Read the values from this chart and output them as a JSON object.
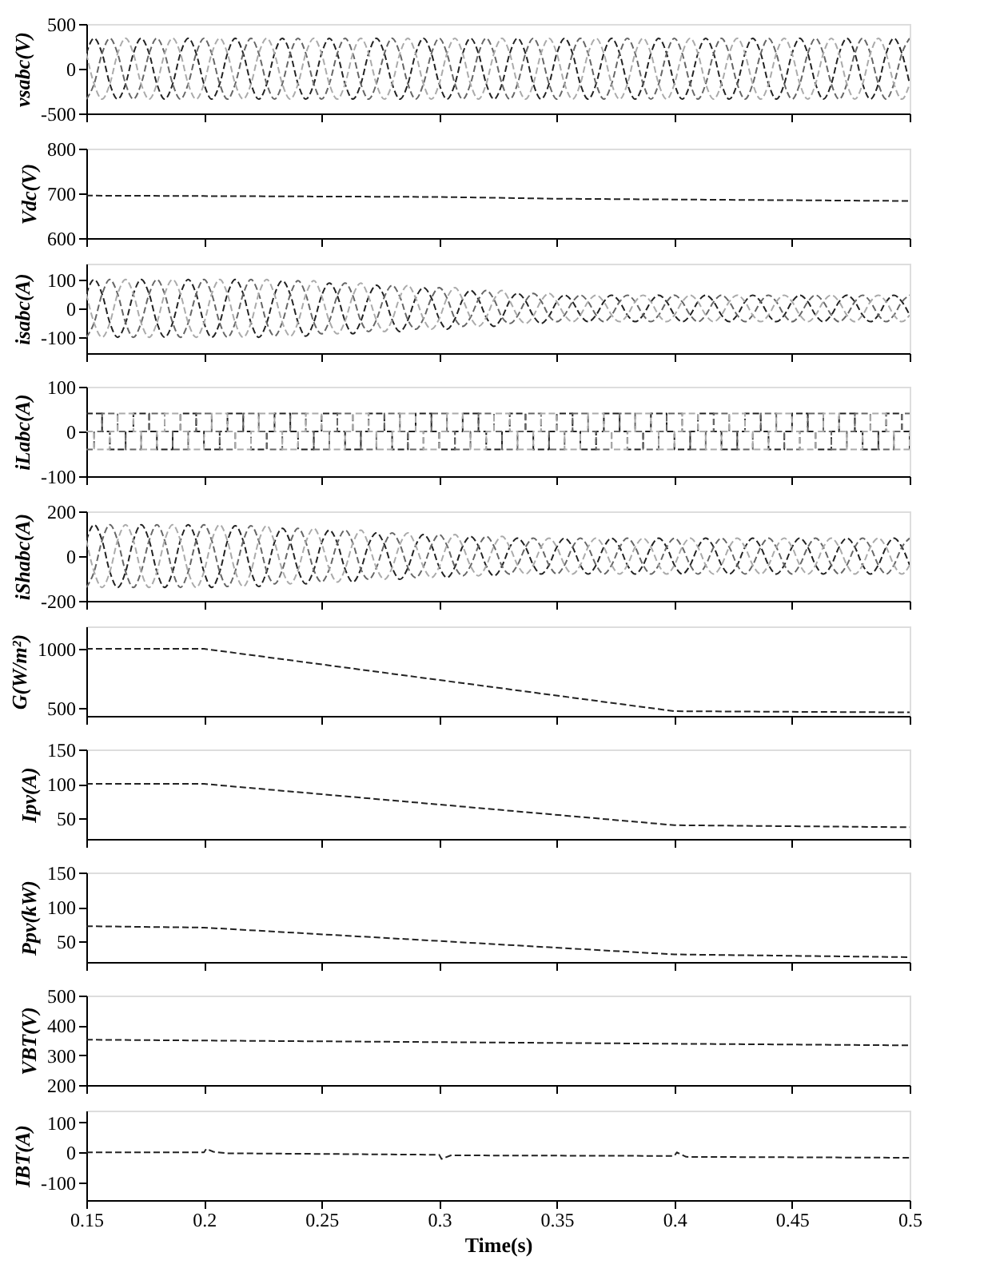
{
  "chart_data": [
    {
      "type": "line",
      "line_style": "dashed",
      "ylabel": "vsabc(V)",
      "xlim": [
        0.15,
        0.5
      ],
      "xticks": [
        0.15,
        0.2,
        0.25,
        0.3,
        0.35,
        0.4,
        0.45,
        0.5
      ],
      "ylim": [
        -500,
        500
      ],
      "yticks": [
        -500,
        0,
        500
      ],
      "tick_labels": "y",
      "x": [
        0.15,
        0.1533,
        0.1567,
        0.16,
        0.1633,
        0.1667,
        0.17,
        0.1733,
        0.1767,
        0.18,
        0.1833,
        0.1867,
        0.19,
        0.1933,
        0.1967,
        0.2,
        0.2033,
        0.2067,
        0.21,
        0.2133,
        0.2167,
        0.22,
        0.2233,
        0.2267,
        0.23,
        0.2333,
        0.2367,
        0.24,
        0.2433,
        0.2467,
        0.25,
        0.2533,
        0.2567,
        0.26,
        0.2633,
        0.2667,
        0.27,
        0.2733,
        0.2767,
        0.28,
        0.2833,
        0.2867,
        0.29,
        0.2933,
        0.2967,
        0.3,
        0.3033,
        0.3067,
        0.31,
        0.3133,
        0.3167,
        0.32,
        0.3233,
        0.3267,
        0.33,
        0.3333,
        0.3367,
        0.34,
        0.3433,
        0.3467,
        0.35,
        0.3533,
        0.3567,
        0.36,
        0.3633,
        0.3667,
        0.37,
        0.3733,
        0.3767,
        0.38,
        0.3833,
        0.3867,
        0.39,
        0.3933,
        0.3967,
        0.4,
        0.4033,
        0.4067,
        0.41,
        0.4133,
        0.4167,
        0.42,
        0.4233,
        0.4267,
        0.43,
        0.4333,
        0.4367,
        0.44,
        0.4433,
        0.4467,
        0.45,
        0.4533,
        0.4567,
        0.46,
        0.4633,
        0.4667,
        0.47,
        0.4733,
        0.4767,
        0.48,
        0.4833,
        0.4867,
        0.49,
        0.4933,
        0.4967,
        0.5
      ],
      "series": [
        {
          "color": "#222222",
          "values": [
            170,
            340,
            170,
            -170,
            -340,
            -170,
            170,
            340,
            170,
            -170,
            -340,
            -170,
            170,
            340,
            170,
            -170,
            -340,
            -170,
            170,
            340,
            170,
            -170,
            -340,
            -170,
            170,
            340,
            170,
            -170,
            -340,
            -170,
            170,
            340,
            170,
            -170,
            -340,
            -170,
            170,
            340,
            170,
            -170,
            -340,
            -170,
            170,
            340,
            170,
            -170,
            -340,
            -170,
            170,
            340,
            170,
            -170,
            -340,
            -170,
            170,
            340,
            170,
            -170,
            -340,
            -170,
            170,
            340,
            170,
            -170,
            -340,
            -170,
            170,
            340,
            170,
            -170,
            -340,
            -170,
            170,
            340,
            170,
            -170,
            -340,
            -170,
            170,
            340,
            170,
            -170,
            -340,
            -170,
            170,
            340,
            170,
            -170,
            -340,
            -170,
            170,
            340,
            170,
            -170,
            -340,
            -170,
            170,
            340,
            170,
            -170,
            -340,
            -170,
            170,
            340,
            170,
            -170
          ]
        },
        {
          "color": "#666666",
          "values": [
            -340,
            -170,
            170,
            340,
            170,
            -170,
            -340,
            -170,
            170,
            340,
            170,
            -170,
            -340,
            -170,
            170,
            340,
            170,
            -170,
            -340,
            -170,
            170,
            340,
            170,
            -170,
            -340,
            -170,
            170,
            340,
            170,
            -170,
            -340,
            -170,
            170,
            340,
            170,
            -170,
            -340,
            -170,
            170,
            340,
            170,
            -170,
            -340,
            -170,
            170,
            340,
            170,
            -170,
            -340,
            -170,
            170,
            340,
            170,
            -170,
            -340,
            -170,
            170,
            340,
            170,
            -170,
            -340,
            -170,
            170,
            340,
            170,
            -170,
            -340,
            -170,
            170,
            340,
            170,
            -170,
            -340,
            -170,
            170,
            340,
            170,
            -170,
            -340,
            -170,
            170,
            340,
            170,
            -170,
            -340,
            -170,
            170,
            340,
            170,
            -170,
            -340,
            -170,
            170,
            340,
            170,
            -170,
            -340,
            -170,
            170,
            340,
            170,
            -170,
            -340,
            -170,
            170,
            340
          ]
        },
        {
          "color": "#aaaaaa",
          "values": [
            170,
            -170,
            -340,
            -170,
            170,
            340,
            170,
            -170,
            -340,
            -170,
            170,
            340,
            170,
            -170,
            -340,
            -170,
            170,
            340,
            170,
            -170,
            -340,
            -170,
            170,
            340,
            170,
            -170,
            -340,
            -170,
            170,
            340,
            170,
            -170,
            -340,
            -170,
            170,
            340,
            170,
            -170,
            -340,
            -170,
            170,
            340,
            170,
            -170,
            -340,
            -170,
            170,
            340,
            170,
            -170,
            -340,
            -170,
            170,
            340,
            170,
            -170,
            -340,
            -170,
            170,
            340,
            170,
            -170,
            -340,
            -170,
            170,
            340,
            170,
            -170,
            -340,
            -170,
            170,
            340,
            170,
            -170,
            -340,
            -170,
            170,
            340,
            170,
            -170,
            -340,
            -170,
            170,
            340,
            170,
            -170,
            -340,
            -170,
            170,
            340,
            170,
            -170,
            -340,
            -170,
            170,
            340,
            170,
            -170,
            -340,
            -170,
            170,
            340,
            170,
            -170,
            -340,
            -170
          ]
        }
      ]
    },
    {
      "type": "line",
      "line_style": "dashed",
      "ylabel": "Vdc(V)",
      "xlim": [
        0.15,
        0.5
      ],
      "xticks": [
        0.15,
        0.2,
        0.25,
        0.3,
        0.35,
        0.4,
        0.45,
        0.5
      ],
      "ylim": [
        600,
        800
      ],
      "yticks": [
        600,
        700,
        800
      ],
      "tick_labels": "y",
      "series": [
        {
          "color": "#222222",
          "x": [
            0.15,
            0.3,
            0.35,
            0.5
          ],
          "values": [
            695,
            692,
            688,
            683
          ]
        }
      ]
    },
    {
      "type": "line",
      "line_style": "dashed",
      "ylabel": "isabc(A)",
      "xlim": [
        0.15,
        0.5
      ],
      "xticks": [
        0.15,
        0.2,
        0.25,
        0.3,
        0.35,
        0.4,
        0.45,
        0.5
      ],
      "ylim": [
        -155,
        155
      ],
      "yticks": [
        -100,
        0,
        100
      ],
      "tick_labels": "y",
      "x": [
        0.15,
        0.1533,
        0.1567,
        0.16,
        0.1633,
        0.1667,
        0.17,
        0.1733,
        0.1767,
        0.18,
        0.1833,
        0.1867,
        0.19,
        0.1933,
        0.1967,
        0.2,
        0.2033,
        0.2067,
        0.21,
        0.2133,
        0.2167,
        0.22,
        0.2233,
        0.2267,
        0.23,
        0.2333,
        0.2367,
        0.24,
        0.2433,
        0.2467,
        0.25,
        0.2533,
        0.2567,
        0.26,
        0.2633,
        0.2667,
        0.27,
        0.2733,
        0.2767,
        0.28,
        0.2833,
        0.2867,
        0.29,
        0.2933,
        0.2967,
        0.3,
        0.3033,
        0.3067,
        0.31,
        0.3133,
        0.3167,
        0.32,
        0.3233,
        0.3267,
        0.33,
        0.3333,
        0.3367,
        0.34,
        0.3433,
        0.3467,
        0.35,
        0.3533,
        0.3567,
        0.36,
        0.3633,
        0.3667,
        0.37,
        0.3733,
        0.3767,
        0.38,
        0.3833,
        0.3867,
        0.39,
        0.3933,
        0.3967,
        0.4,
        0.4033,
        0.4067,
        0.41,
        0.4133,
        0.4167,
        0.42,
        0.4233,
        0.4267,
        0.43,
        0.4333,
        0.4367,
        0.44,
        0.4433,
        0.4467,
        0.45,
        0.4533,
        0.4567,
        0.46,
        0.4633,
        0.4667,
        0.47,
        0.4733,
        0.4767,
        0.48,
        0.4833,
        0.4867,
        0.49,
        0.4933,
        0.4967,
        0.5
      ],
      "series": [
        {
          "color": "#222222",
          "values": [
            50,
            100,
            50,
            -50,
            -100,
            -50,
            50,
            100,
            50,
            -50,
            -100,
            -50,
            50,
            100,
            50,
            -50,
            -100,
            -50,
            50,
            100,
            50,
            -50,
            -100,
            -50,
            48,
            96,
            48,
            -48,
            -96,
            -48,
            44,
            88,
            44,
            -44,
            -88,
            -44,
            40,
            80,
            40,
            -40,
            -80,
            -40,
            36,
            72,
            36,
            -36,
            -72,
            -36,
            31,
            62,
            31,
            -31,
            -62,
            -31,
            26,
            52,
            26,
            -26,
            -52,
            -26,
            23,
            46,
            23,
            -23,
            -46,
            -23,
            23,
            46,
            23,
            -23,
            -46,
            -23,
            23,
            46,
            23,
            -23,
            -46,
            -23,
            23,
            46,
            23,
            -23,
            -46,
            -23,
            23,
            46,
            23,
            -23,
            -46,
            -23,
            23,
            46,
            23,
            -23,
            -46,
            -23,
            23,
            46,
            23,
            -23,
            -46,
            -23,
            23,
            46,
            23,
            -23
          ]
        },
        {
          "color": "#666666",
          "values": [
            -100,
            -50,
            50,
            100,
            50,
            -50,
            -100,
            -50,
            50,
            100,
            50,
            -50,
            -100,
            -50,
            50,
            100,
            50,
            -50,
            -100,
            -50,
            50,
            100,
            50,
            -50,
            -96,
            -48,
            48,
            96,
            48,
            -48,
            -88,
            -44,
            44,
            88,
            44,
            -44,
            -80,
            -40,
            40,
            80,
            40,
            -40,
            -72,
            -36,
            36,
            72,
            36,
            -36,
            -62,
            -31,
            31,
            62,
            31,
            -31,
            -52,
            -26,
            26,
            52,
            26,
            -26,
            -46,
            -23,
            23,
            46,
            23,
            -23,
            -46,
            -23,
            23,
            46,
            23,
            -23,
            -46,
            -23,
            23,
            46,
            23,
            -23,
            -46,
            -23,
            23,
            46,
            23,
            -23,
            -46,
            -23,
            23,
            46,
            23,
            -23,
            -46,
            -23,
            23,
            46,
            23,
            -23,
            -46,
            -23,
            23,
            46,
            23,
            -23,
            -46,
            -23,
            23,
            46
          ]
        },
        {
          "color": "#aaaaaa",
          "values": [
            50,
            -50,
            -100,
            -50,
            50,
            100,
            50,
            -50,
            -100,
            -50,
            50,
            100,
            50,
            -50,
            -100,
            -50,
            50,
            100,
            50,
            -50,
            -100,
            -50,
            50,
            100,
            48,
            -48,
            -96,
            -48,
            48,
            96,
            44,
            -44,
            -88,
            -44,
            44,
            88,
            40,
            -40,
            -80,
            -40,
            40,
            80,
            36,
            -36,
            -72,
            -36,
            36,
            72,
            31,
            -31,
            -62,
            -31,
            31,
            62,
            26,
            -26,
            -52,
            -26,
            26,
            52,
            23,
            -23,
            -46,
            -23,
            23,
            46,
            23,
            -23,
            -46,
            -23,
            23,
            46,
            23,
            -23,
            -46,
            -23,
            23,
            46,
            23,
            -23,
            -46,
            -23,
            23,
            46,
            23,
            -23,
            -46,
            -23,
            23,
            46,
            23,
            -23,
            -46,
            -23,
            23,
            46,
            23,
            -23,
            -46,
            -23,
            23,
            46,
            23,
            -23,
            -46,
            -23
          ]
        }
      ]
    },
    {
      "type": "step",
      "line_style": "dashed",
      "ylabel": "iLabc(A)",
      "xlim": [
        0.15,
        0.5
      ],
      "xticks": [
        0.15,
        0.2,
        0.25,
        0.3,
        0.35,
        0.4,
        0.45,
        0.5
      ],
      "ylim": [
        -100,
        100
      ],
      "yticks": [
        -100,
        0,
        100
      ],
      "tick_labels": "y",
      "x": [
        0.15,
        0.1533,
        0.1567,
        0.16,
        0.1633,
        0.1667,
        0.17,
        0.1733,
        0.1767,
        0.18,
        0.1833,
        0.1867,
        0.19,
        0.1933,
        0.1967,
        0.2,
        0.2033,
        0.2067,
        0.21,
        0.2133,
        0.2167,
        0.22,
        0.2233,
        0.2267,
        0.23,
        0.2333,
        0.2367,
        0.24,
        0.2433,
        0.2467,
        0.25,
        0.2533,
        0.2567,
        0.26,
        0.2633,
        0.2667,
        0.27,
        0.2733,
        0.2767,
        0.28,
        0.2833,
        0.2867,
        0.29,
        0.2933,
        0.2967,
        0.3,
        0.3033,
        0.3067,
        0.31,
        0.3133,
        0.3167,
        0.32,
        0.3233,
        0.3267,
        0.33,
        0.3333,
        0.3367,
        0.34,
        0.3433,
        0.3467,
        0.35,
        0.3533,
        0.3567,
        0.36,
        0.3633,
        0.3667,
        0.37,
        0.3733,
        0.3767,
        0.38,
        0.3833,
        0.3867,
        0.39,
        0.3933,
        0.3967,
        0.4,
        0.4033,
        0.4067,
        0.41,
        0.4133,
        0.4167,
        0.42,
        0.4233,
        0.4267,
        0.43,
        0.4333,
        0.4367,
        0.44,
        0.4433,
        0.4467,
        0.45,
        0.4533,
        0.4567,
        0.46,
        0.4633,
        0.4667,
        0.47,
        0.4733,
        0.4767,
        0.48,
        0.4833,
        0.4867,
        0.49,
        0.4933,
        0.4967,
        0.5
      ],
      "series": [
        {
          "color": "#222222",
          "values": [
            40,
            40,
            0,
            -40,
            -40,
            0,
            40,
            40,
            0,
            -40,
            -40,
            0,
            40,
            40,
            0,
            -40,
            -40,
            0,
            40,
            40,
            0,
            -40,
            -40,
            0,
            40,
            40,
            0,
            -40,
            -40,
            0,
            40,
            40,
            0,
            -40,
            -40,
            0,
            40,
            40,
            0,
            -40,
            -40,
            0,
            40,
            40,
            0,
            -40,
            -40,
            0,
            40,
            40,
            0,
            -40,
            -40,
            0,
            40,
            40,
            0,
            -40,
            -40,
            0,
            40,
            40,
            0,
            -40,
            -40,
            0,
            40,
            40,
            0,
            -40,
            -40,
            0,
            40,
            40,
            0,
            -40,
            -40,
            0,
            40,
            40,
            0,
            -40,
            -40,
            0,
            40,
            40,
            0,
            -40,
            -40,
            0,
            40,
            40,
            0,
            -40,
            -40,
            0,
            40,
            40,
            0,
            -40,
            -40,
            0,
            40,
            40,
            0,
            -40
          ]
        },
        {
          "color": "#666666",
          "values": [
            -40,
            0,
            40,
            40,
            0,
            -40,
            -40,
            0,
            40,
            40,
            0,
            -40,
            -40,
            0,
            40,
            40,
            0,
            -40,
            -40,
            0,
            40,
            40,
            0,
            -40,
            -40,
            0,
            40,
            40,
            0,
            -40,
            -40,
            0,
            40,
            40,
            0,
            -40,
            -40,
            0,
            40,
            40,
            0,
            -40,
            -40,
            0,
            40,
            40,
            0,
            -40,
            -40,
            0,
            40,
            40,
            0,
            -40,
            -40,
            0,
            40,
            40,
            0,
            -40,
            -40,
            0,
            40,
            40,
            0,
            -40,
            -40,
            0,
            40,
            40,
            0,
            -40,
            -40,
            0,
            40,
            40,
            0,
            -40,
            -40,
            0,
            40,
            40,
            0,
            -40,
            -40,
            0,
            40,
            40,
            0,
            -40,
            -40,
            0,
            40,
            40,
            0,
            -40,
            -40,
            0,
            40,
            40,
            0,
            -40,
            -40,
            0,
            40,
            40
          ]
        },
        {
          "color": "#aaaaaa",
          "values": [
            0,
            -40,
            -40,
            0,
            40,
            40,
            0,
            -40,
            -40,
            0,
            40,
            40,
            0,
            -40,
            -40,
            0,
            40,
            40,
            0,
            -40,
            -40,
            0,
            40,
            40,
            0,
            -40,
            -40,
            0,
            40,
            40,
            0,
            -40,
            -40,
            0,
            40,
            40,
            0,
            -40,
            -40,
            0,
            40,
            40,
            0,
            -40,
            -40,
            0,
            40,
            40,
            0,
            -40,
            -40,
            0,
            40,
            40,
            0,
            -40,
            -40,
            0,
            40,
            40,
            0,
            -40,
            -40,
            0,
            40,
            40,
            0,
            -40,
            -40,
            0,
            40,
            40,
            0,
            -40,
            -40,
            0,
            40,
            40,
            0,
            -40,
            -40,
            0,
            40,
            40,
            0,
            -40,
            -40,
            0,
            40,
            40,
            0,
            -40,
            -40,
            0,
            40,
            40,
            0,
            -40,
            -40,
            0,
            40,
            40,
            0,
            -40,
            -40,
            0
          ]
        }
      ]
    },
    {
      "type": "line",
      "line_style": "dashed",
      "ylabel": "iShabc(A)",
      "xlim": [
        0.15,
        0.5
      ],
      "xticks": [
        0.15,
        0.2,
        0.25,
        0.3,
        0.35,
        0.4,
        0.45,
        0.5
      ],
      "ylim": [
        -200,
        200
      ],
      "yticks": [
        -200,
        0,
        200
      ],
      "tick_labels": "y",
      "x": [
        0.15,
        0.1533,
        0.1567,
        0.16,
        0.1633,
        0.1667,
        0.17,
        0.1733,
        0.1767,
        0.18,
        0.1833,
        0.1867,
        0.19,
        0.1933,
        0.1967,
        0.2,
        0.2033,
        0.2067,
        0.21,
        0.2133,
        0.2167,
        0.22,
        0.2233,
        0.2267,
        0.23,
        0.2333,
        0.2367,
        0.24,
        0.2433,
        0.2467,
        0.25,
        0.2533,
        0.2567,
        0.26,
        0.2633,
        0.2667,
        0.27,
        0.2733,
        0.2767,
        0.28,
        0.2833,
        0.2867,
        0.29,
        0.2933,
        0.2967,
        0.3,
        0.3033,
        0.3067,
        0.31,
        0.3133,
        0.3167,
        0.32,
        0.3233,
        0.3267,
        0.33,
        0.3333,
        0.3367,
        0.34,
        0.3433,
        0.3467,
        0.35,
        0.3533,
        0.3567,
        0.36,
        0.3633,
        0.3667,
        0.37,
        0.3733,
        0.3767,
        0.38,
        0.3833,
        0.3867,
        0.39,
        0.3933,
        0.3967,
        0.4,
        0.4033,
        0.4067,
        0.41,
        0.4133,
        0.4167,
        0.42,
        0.4233,
        0.4267,
        0.43,
        0.4333,
        0.4367,
        0.44,
        0.4433,
        0.4467,
        0.45,
        0.4533,
        0.4567,
        0.46,
        0.4633,
        0.4667,
        0.47,
        0.4733,
        0.4767,
        0.48,
        0.4833,
        0.4867,
        0.49,
        0.4933,
        0.4967,
        0.5
      ],
      "series": [
        {
          "color": "#222222",
          "values": [
            70,
            140,
            70,
            -70,
            -140,
            -70,
            70,
            140,
            70,
            -70,
            -140,
            -70,
            70,
            140,
            70,
            -70,
            -140,
            -70,
            68,
            136,
            68,
            -68,
            -136,
            -68,
            62,
            124,
            62,
            -62,
            -124,
            -62,
            58,
            116,
            58,
            -58,
            -116,
            -58,
            52,
            104,
            52,
            -52,
            -104,
            -52,
            48,
            96,
            48,
            -48,
            -96,
            -48,
            44,
            88,
            44,
            -44,
            -88,
            -44,
            40,
            80,
            40,
            -40,
            -80,
            -40,
            40,
            80,
            40,
            -40,
            -80,
            -40,
            40,
            80,
            40,
            -40,
            -80,
            -40,
            40,
            80,
            40,
            -40,
            -80,
            -40,
            40,
            80,
            40,
            -40,
            -80,
            -40,
            40,
            80,
            40,
            -40,
            -80,
            -40,
            40,
            80,
            40,
            -40,
            -80,
            -40,
            40,
            80,
            40,
            -40,
            -80,
            -40,
            40,
            80,
            40,
            -40
          ]
        },
        {
          "color": "#666666",
          "values": [
            -140,
            -70,
            70,
            140,
            70,
            -70,
            -140,
            -70,
            70,
            140,
            70,
            -70,
            -140,
            -70,
            70,
            140,
            70,
            -70,
            -136,
            -68,
            68,
            136,
            68,
            -68,
            -124,
            -62,
            62,
            124,
            62,
            -62,
            -116,
            -58,
            58,
            116,
            58,
            -58,
            -104,
            -52,
            52,
            104,
            52,
            -52,
            -96,
            -48,
            48,
            96,
            48,
            -48,
            -88,
            -44,
            44,
            88,
            44,
            -44,
            -80,
            -40,
            40,
            80,
            40,
            -40,
            -80,
            -40,
            40,
            80,
            40,
            -40,
            -80,
            -40,
            40,
            80,
            40,
            -40,
            -80,
            -40,
            40,
            80,
            40,
            -40,
            -80,
            -40,
            40,
            80,
            40,
            -40,
            -80,
            -40,
            40,
            80,
            40,
            -40,
            -80,
            -40,
            40,
            80,
            40,
            -40,
            -80,
            -40,
            40,
            80,
            40,
            -40,
            -80,
            -40,
            40,
            80
          ]
        },
        {
          "color": "#aaaaaa",
          "values": [
            70,
            -70,
            -140,
            -70,
            70,
            140,
            70,
            -70,
            -140,
            -70,
            70,
            140,
            70,
            -70,
            -140,
            -70,
            70,
            140,
            68,
            -68,
            -136,
            -68,
            68,
            136,
            62,
            -62,
            -124,
            -62,
            62,
            124,
            58,
            -58,
            -116,
            -58,
            58,
            116,
            52,
            -52,
            -104,
            -52,
            52,
            104,
            48,
            -48,
            -96,
            -48,
            48,
            96,
            44,
            -44,
            -88,
            -44,
            44,
            88,
            40,
            -40,
            -80,
            -40,
            40,
            80,
            40,
            -40,
            -80,
            -40,
            40,
            80,
            40,
            -40,
            -80,
            -40,
            40,
            80,
            40,
            -40,
            -80,
            -40,
            40,
            80,
            40,
            -40,
            -80,
            -40,
            40,
            80,
            40,
            -40,
            -80,
            -40,
            40,
            80,
            40,
            -40,
            -80,
            -40,
            40,
            80,
            40,
            -40,
            -80,
            -40,
            40,
            80,
            40,
            -40,
            -80,
            -40
          ]
        }
      ]
    },
    {
      "type": "line",
      "line_style": "dashed",
      "ylabel": "G(W/m²)",
      "xlim": [
        0.15,
        0.5
      ],
      "xticks": [
        0.15,
        0.2,
        0.25,
        0.3,
        0.35,
        0.4,
        0.45,
        0.5
      ],
      "ylim": [
        430,
        1190
      ],
      "yticks": [
        500,
        1000
      ],
      "tick_labels": "y",
      "series": [
        {
          "color": "#222222",
          "x": [
            0.15,
            0.2,
            0.4,
            0.5
          ],
          "values": [
            1000,
            1000,
            470,
            460
          ]
        }
      ]
    },
    {
      "type": "line",
      "line_style": "dashed",
      "ylabel": "Ipv(A)",
      "xlim": [
        0.15,
        0.5
      ],
      "xticks": [
        0.15,
        0.2,
        0.25,
        0.3,
        0.35,
        0.4,
        0.45,
        0.5
      ],
      "ylim": [
        20,
        150
      ],
      "yticks": [
        50,
        100,
        150
      ],
      "tick_labels": "y",
      "series": [
        {
          "color": "#222222",
          "x": [
            0.15,
            0.2,
            0.4,
            0.5
          ],
          "values": [
            100,
            100,
            40,
            37
          ]
        }
      ]
    },
    {
      "type": "line",
      "line_style": "dashed",
      "ylabel": "Ppv(kW)",
      "xlim": [
        0.15,
        0.5
      ],
      "xticks": [
        0.15,
        0.2,
        0.25,
        0.3,
        0.35,
        0.4,
        0.45,
        0.5
      ],
      "ylim": [
        20,
        150
      ],
      "yticks": [
        50,
        100,
        150
      ],
      "tick_labels": "y",
      "series": [
        {
          "color": "#222222",
          "x": [
            0.15,
            0.2,
            0.4,
            0.5
          ],
          "values": [
            72,
            70,
            31,
            27
          ]
        }
      ]
    },
    {
      "type": "line",
      "line_style": "dashed",
      "ylabel": "VBT(V)",
      "xlim": [
        0.15,
        0.5
      ],
      "xticks": [
        0.15,
        0.2,
        0.25,
        0.3,
        0.35,
        0.4,
        0.45,
        0.5
      ],
      "ylim": [
        200,
        500
      ],
      "yticks": [
        200,
        300,
        400,
        500
      ],
      "tick_labels": "y",
      "series": [
        {
          "color": "#222222",
          "x": [
            0.15,
            0.5
          ],
          "values": [
            352,
            333
          ]
        }
      ]
    },
    {
      "type": "line",
      "line_style": "dashed",
      "ylabel": "IBT(A)",
      "xlabel": "Time(s)",
      "xlim": [
        0.15,
        0.5
      ],
      "xticks": [
        0.15,
        0.2,
        0.25,
        0.3,
        0.35,
        0.4,
        0.45,
        0.5
      ],
      "ylim": [
        -160,
        140
      ],
      "yticks": [
        -100,
        0,
        100
      ],
      "series": [
        {
          "color": "#222222",
          "x": [
            0.15,
            0.2,
            0.201,
            0.204,
            0.21,
            0.3,
            0.301,
            0.305,
            0.4,
            0.401,
            0.405,
            0.5
          ],
          "values": [
            0,
            0,
            12,
            2,
            -3,
            -8,
            -22,
            -10,
            -12,
            0,
            -15,
            -18
          ]
        }
      ]
    }
  ]
}
